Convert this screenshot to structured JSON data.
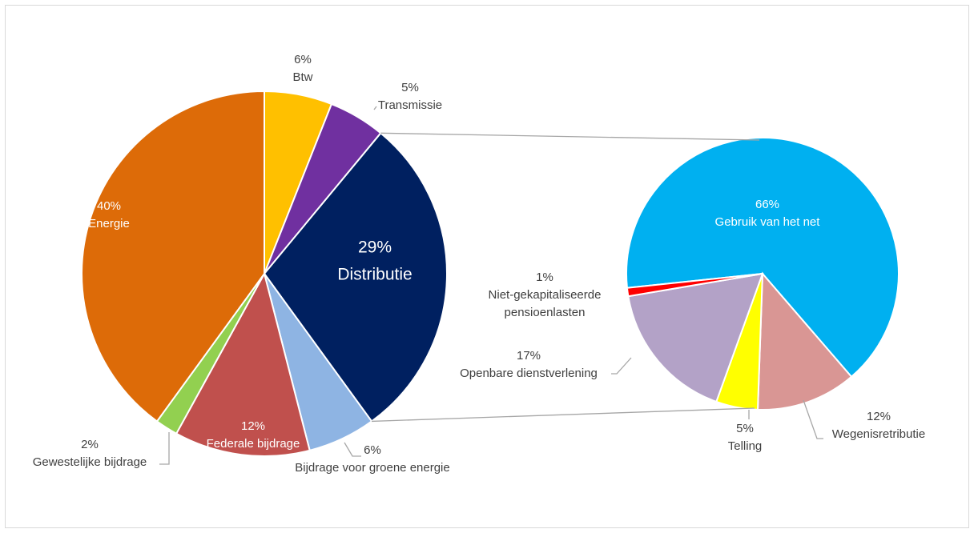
{
  "chart_data": [
    {
      "type": "pie",
      "categories": [
        "Btw",
        "Transmissie",
        "Distributie",
        "Bijdrage voor groene energie",
        "Federale bijdrage",
        "Gewestelijke bijdrage",
        "Energie"
      ],
      "values": [
        6,
        5,
        29,
        6,
        12,
        2,
        40
      ],
      "value_labels": [
        "6%",
        "5%",
        "29%",
        "6%",
        "12%",
        "2%",
        "40%"
      ],
      "colors": [
        "#ffc000",
        "#7030a0",
        "#002060",
        "#8eb4e3",
        "#c0504d",
        "#92d050",
        "#dd6b08"
      ]
    },
    {
      "type": "pie",
      "categories": [
        "Gebruik van het net",
        "Wegenisretributie",
        "Telling",
        "Openbare dienstverlening",
        "Niet-gekapitaliseerde pensioenlasten"
      ],
      "values": [
        66,
        12,
        5,
        17,
        1
      ],
      "value_labels": [
        "66%",
        "12%",
        "5%",
        "17%",
        "1%"
      ],
      "colors": [
        "#00b0f0",
        "#d99694",
        "#ffff00",
        "#b3a2c7",
        "#ff0000"
      ]
    }
  ]
}
